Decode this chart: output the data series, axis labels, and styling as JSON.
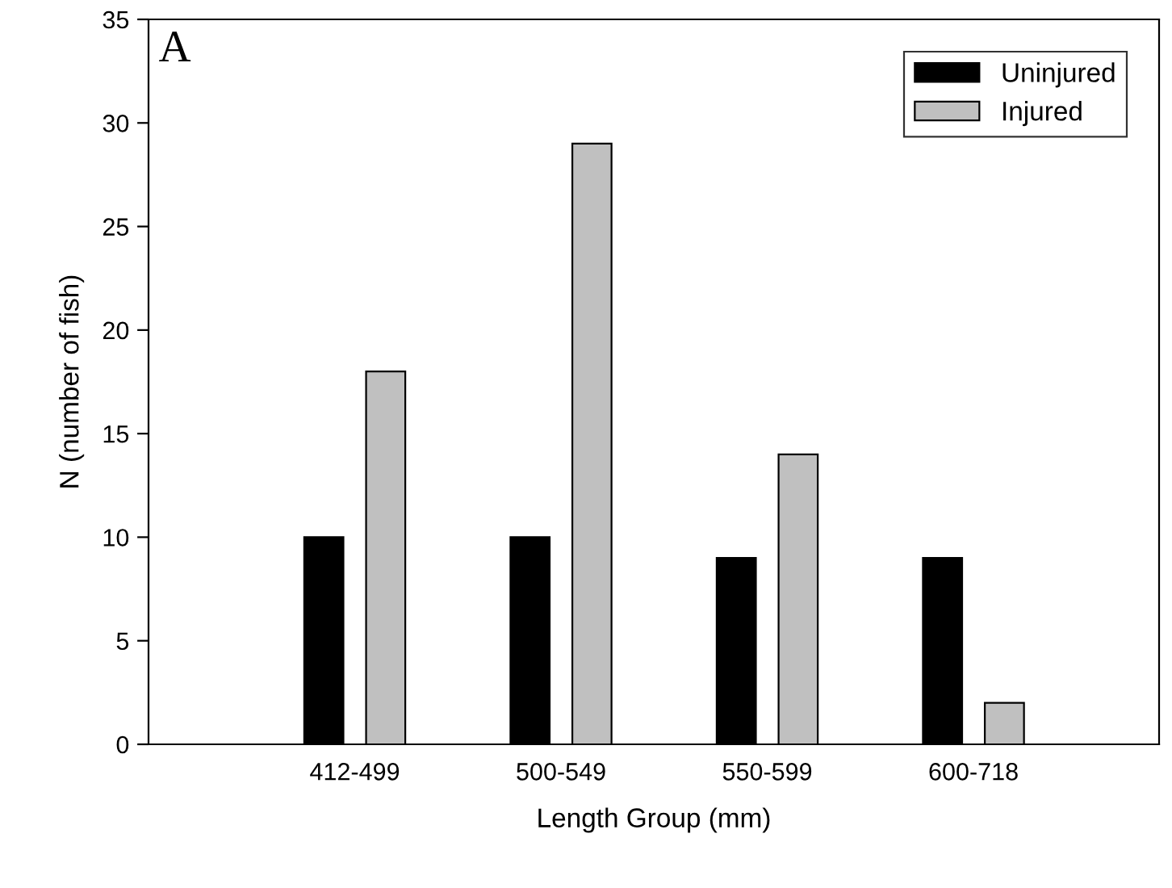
{
  "chart_data": {
    "type": "bar",
    "xlabel": "Length Group (mm)",
    "ylabel": "N (number of fish)",
    "categories": [
      "412-499",
      "500-549",
      "550-599",
      "600-718"
    ],
    "series": [
      {
        "name": "Uninjured",
        "color": "#000000",
        "values": [
          10,
          10,
          9,
          9
        ]
      },
      {
        "name": "Injured",
        "color": "#c0c0c0",
        "values": [
          18,
          29,
          14,
          2
        ]
      }
    ],
    "ylim": [
      0,
      35
    ],
    "yticks": [
      0,
      5,
      10,
      15,
      20,
      25,
      30,
      35
    ],
    "annotations": [
      "A"
    ],
    "legend": "top right",
    "grid": false
  }
}
